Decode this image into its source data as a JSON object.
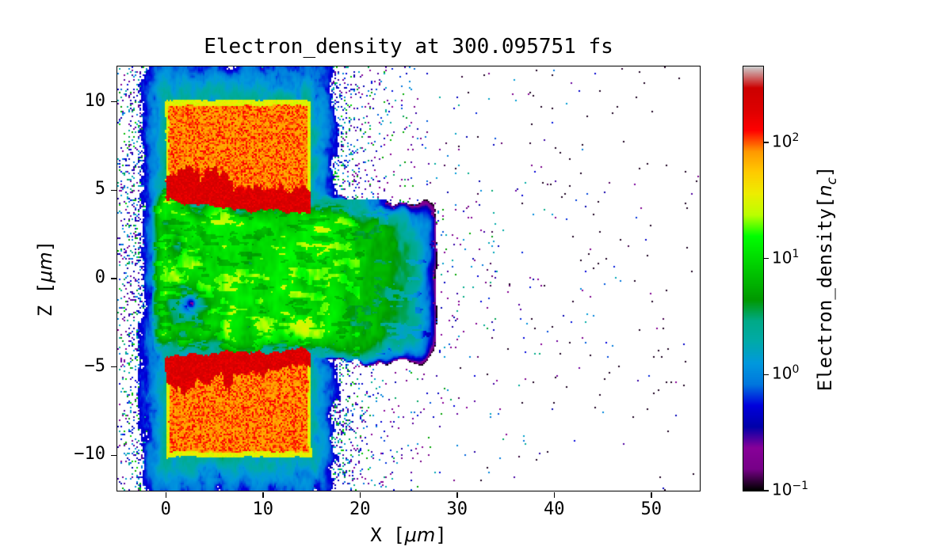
{
  "chart_data": {
    "type": "heatmap",
    "title": "Electron_density at 300.095751 fs",
    "xlabel_parts": {
      "pre": "X [",
      "math": "μm",
      "post": "]"
    },
    "ylabel_parts": {
      "pre": "Z [",
      "math": "μm",
      "post": "]"
    },
    "xlim": [
      -5,
      55
    ],
    "ylim": [
      -12,
      12
    ],
    "xticks": [
      {
        "v": 0,
        "label": "0"
      },
      {
        "v": 10,
        "label": "10"
      },
      {
        "v": 20,
        "label": "20"
      },
      {
        "v": 30,
        "label": "30"
      },
      {
        "v": 40,
        "label": "40"
      },
      {
        "v": 50,
        "label": "50"
      }
    ],
    "yticks": [
      {
        "v": -10,
        "label": "−10"
      },
      {
        "v": -5,
        "label": "−5"
      },
      {
        "v": 0,
        "label": "0"
      },
      {
        "v": 5,
        "label": "5"
      },
      {
        "v": 10,
        "label": "10"
      }
    ],
    "colorbar": {
      "label_parts": {
        "pre": "Electron_density[",
        "math": "n",
        "sub": "c",
        "post": "]"
      },
      "scale": "log",
      "vmin": 0.1,
      "vmax": 450,
      "ticks": [
        {
          "v": 0.1,
          "base": "10",
          "exp": "−1"
        },
        {
          "v": 1,
          "base": "10",
          "exp": "0"
        },
        {
          "v": 10,
          "base": "10",
          "exp": "1"
        },
        {
          "v": 100,
          "base": "10",
          "exp": "2"
        }
      ]
    },
    "colormap": {
      "name": "nipy_spectral",
      "stops": [
        [
          0.0,
          0,
          0,
          0
        ],
        [
          0.05,
          119,
          0,
          136
        ],
        [
          0.1,
          136,
          0,
          153
        ],
        [
          0.15,
          0,
          0,
          170
        ],
        [
          0.2,
          0,
          0,
          221
        ],
        [
          0.25,
          0,
          119,
          221
        ],
        [
          0.3,
          0,
          153,
          221
        ],
        [
          0.35,
          0,
          170,
          170
        ],
        [
          0.4,
          0,
          170,
          136
        ],
        [
          0.45,
          0,
          153,
          0
        ],
        [
          0.5,
          0,
          187,
          0
        ],
        [
          0.55,
          0,
          221,
          0
        ],
        [
          0.6,
          0,
          255,
          0
        ],
        [
          0.65,
          187,
          255,
          0
        ],
        [
          0.7,
          238,
          238,
          0
        ],
        [
          0.75,
          255,
          204,
          0
        ],
        [
          0.8,
          255,
          153,
          0
        ],
        [
          0.85,
          255,
          0,
          0
        ],
        [
          0.9,
          221,
          0,
          0
        ],
        [
          0.95,
          204,
          0,
          0
        ],
        [
          1.0,
          204,
          204,
          204
        ]
      ]
    },
    "features": {
      "upper_target": {
        "x": [
          0,
          14.9
        ],
        "z": [
          4.2,
          10.1
        ],
        "interior_density": 90,
        "front_density": 200,
        "front_slope": -0.055
      },
      "lower_target": {
        "x": [
          0,
          14.9
        ],
        "z": [
          -10.1,
          -4.2
        ],
        "interior_density": 90,
        "front_density": 200,
        "front_slope": 0.03
      },
      "rim_density": 30,
      "channel": {
        "x_end": 25,
        "half_width": 3.9,
        "density": 11
      },
      "halo": {
        "near_scale": 2.0,
        "far_scale": 8.0,
        "cloud_density": 2.2
      }
    }
  }
}
